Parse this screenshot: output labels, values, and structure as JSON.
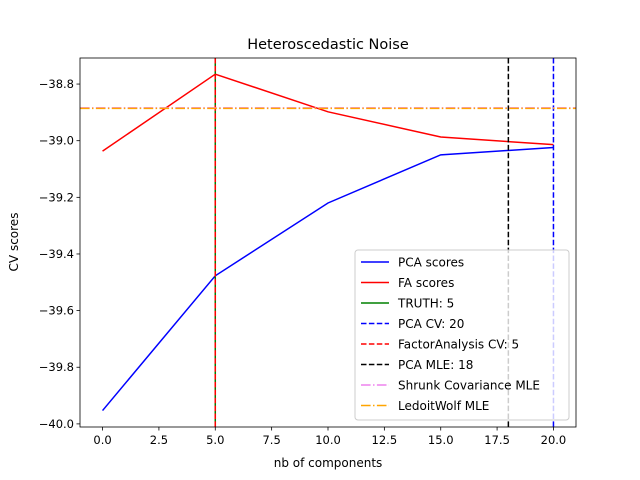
{
  "chart_data": {
    "type": "line",
    "title": "Heteroscedastic Noise",
    "xlabel": "nb of components",
    "ylabel": "CV scores",
    "xlim": [
      -1.0,
      21.0
    ],
    "ylim": [
      -40.011,
      -38.708
    ],
    "xticks": [
      0,
      2.5,
      5,
      7.5,
      10,
      12.5,
      15,
      17.5,
      20
    ],
    "xtick_labels": [
      "0.0",
      "2.5",
      "5.0",
      "7.5",
      "10.0",
      "12.5",
      "15.0",
      "17.5",
      "20.0"
    ],
    "yticks": [
      -40.0,
      -39.8,
      -39.6,
      -39.4,
      -39.2,
      -39.0,
      -38.8
    ],
    "ytick_labels": [
      "−40.0",
      "−39.8",
      "−39.6",
      "−39.4",
      "−39.2",
      "−39.0",
      "−38.8"
    ],
    "grid": false,
    "legend_position": "lower-right",
    "x": [
      0,
      5,
      10,
      15,
      20
    ],
    "series": [
      {
        "name": "PCA scores",
        "color": "#0000ff",
        "values": [
          -39.953,
          -39.477,
          -39.22,
          -39.05,
          -39.024
        ]
      },
      {
        "name": "FA scores",
        "color": "#ff0000",
        "values": [
          -39.037,
          -38.765,
          -38.898,
          -38.987,
          -39.014
        ]
      }
    ],
    "vlines": [
      {
        "name": "TRUTH: 5",
        "x": 5,
        "color": "#008000",
        "style": "solid"
      },
      {
        "name": "PCA CV: 20",
        "x": 20,
        "color": "#0000ff",
        "style": "dashed"
      },
      {
        "name": "FactorAnalysis CV: 5",
        "x": 5,
        "color": "#ff0000",
        "style": "dashed"
      },
      {
        "name": "PCA MLE: 18",
        "x": 18,
        "color": "#000000",
        "style": "dashed"
      }
    ],
    "hlines": [
      {
        "name": "Shrunk Covariance MLE",
        "y": -38.884,
        "color": "#ee82ee",
        "style": "dashdot"
      },
      {
        "name": "LedoitWolf MLE",
        "y": -38.886,
        "color": "#ffa500",
        "style": "dashdot"
      }
    ]
  }
}
